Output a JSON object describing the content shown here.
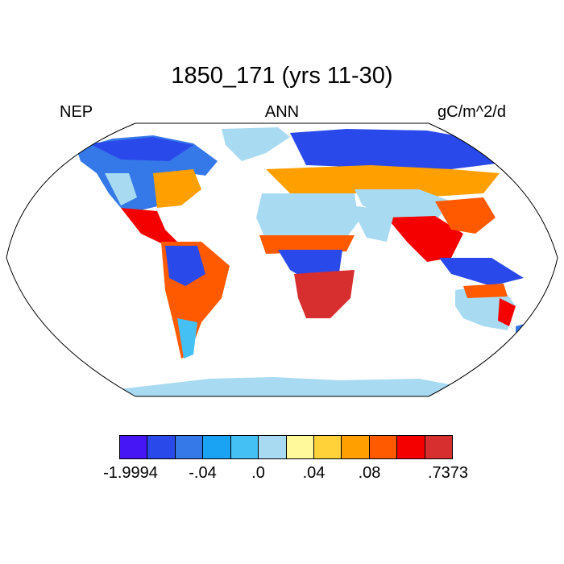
{
  "title": "1850_171 (yrs 11-30)",
  "header": {
    "left": "NEP",
    "center": "ANN",
    "right": "gC/m^2/d"
  },
  "colorbar": {
    "colors": [
      "#4716f5",
      "#2a49ea",
      "#3579e8",
      "#1ba3f3",
      "#44c0f5",
      "#a8dbf2",
      "#fff99b",
      "#ffd23a",
      "#ff9f00",
      "#ff5a00",
      "#f50000",
      "#d72e2f"
    ],
    "labels": [
      "-1.9994",
      "-.04",
      ".0",
      ".04",
      ".08",
      ".7373"
    ]
  },
  "map": {
    "projection": "Robinson",
    "ocean_color": "#ffffff",
    "coastline_color": "#000000"
  }
}
